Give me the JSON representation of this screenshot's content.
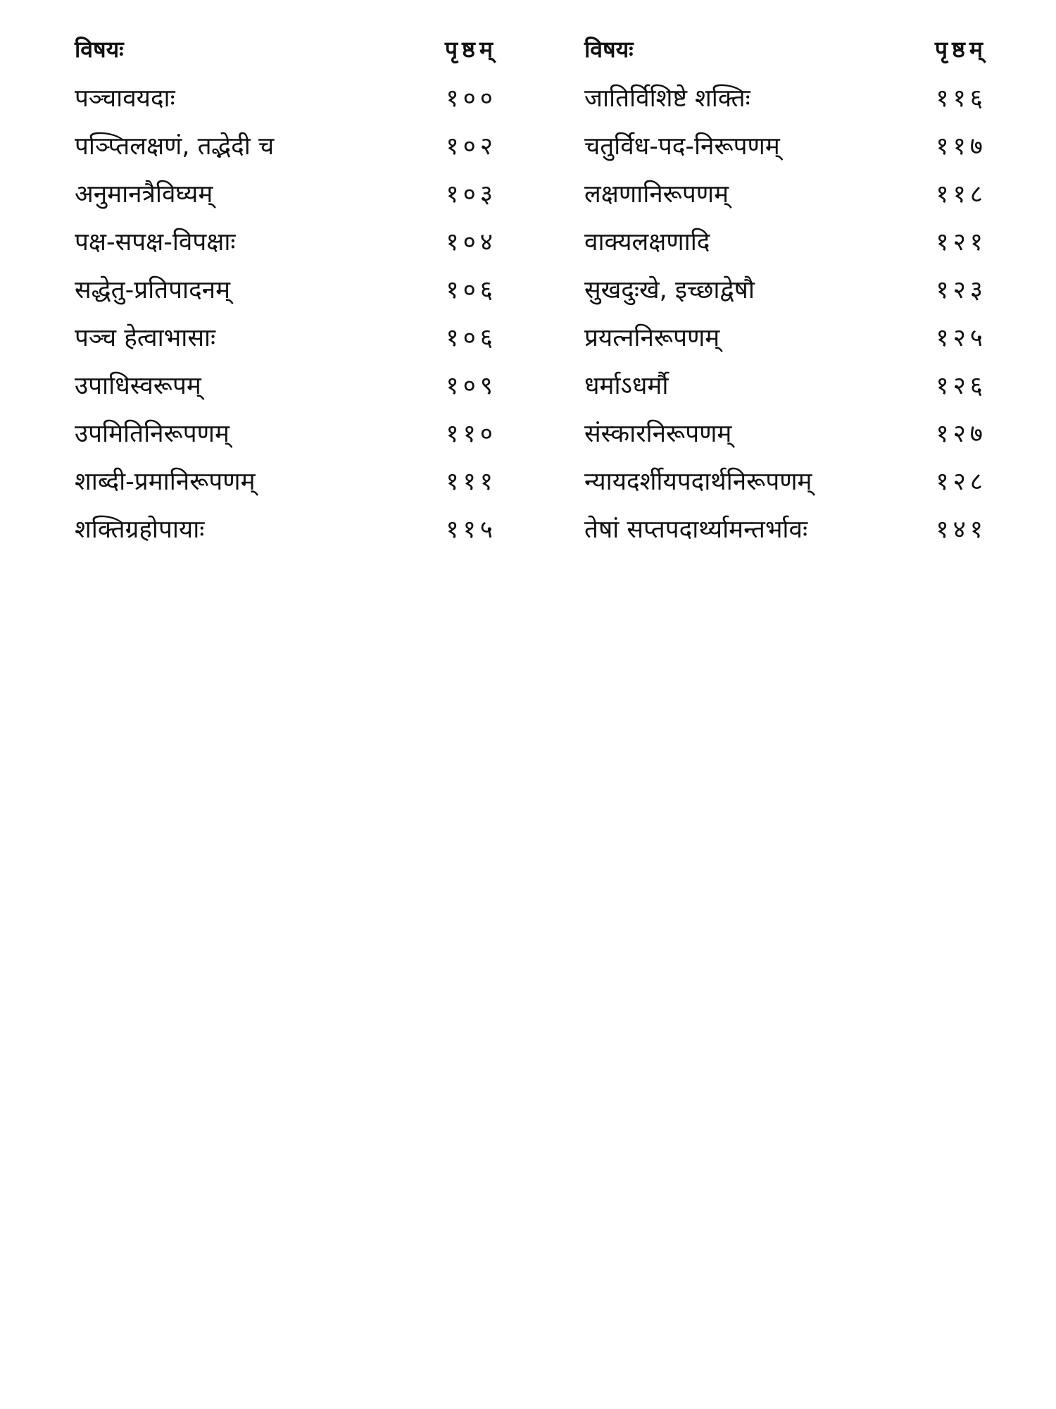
{
  "left_column": {
    "header": {
      "subject": "विषयः",
      "page": "पृष्ठम्"
    },
    "entries": [
      {
        "title": "पञ्चावयदाः",
        "page": "१००"
      },
      {
        "title": "पञ्प्तिलक्षणं, तद्भेदी च",
        "page": "१०२"
      },
      {
        "title": "अनुमानत्रैविघ्यम्",
        "page": "१०३"
      },
      {
        "title": "पक्ष-सपक्ष-विपक्षाः",
        "page": "१०४"
      },
      {
        "title": "सद्धेतु-प्रतिपादनम्",
        "page": "१०६"
      },
      {
        "title": "पञ्च हेत्वाभासाः",
        "page": "१०६"
      },
      {
        "title": "उपाधिस्वरूपम्",
        "page": "१०९"
      },
      {
        "title": "उपमितिनिरूपणम्",
        "page": "११०"
      },
      {
        "title": "शाब्दी-प्रमानिरूपणम्",
        "page": "१११"
      },
      {
        "title": "शक्तिग्रहोपायाः",
        "page": "११५"
      }
    ]
  },
  "right_column": {
    "header": {
      "subject": "विषयः",
      "page": "पृष्ठम्"
    },
    "entries": [
      {
        "title": "जातिर्विशिष्टे शक्तिः",
        "page": "११६"
      },
      {
        "title": "चतुर्विध-पद-निरूपणम्",
        "page": "११७"
      },
      {
        "title": "लक्षणानिरूपणम्",
        "page": "११८"
      },
      {
        "title": "वाक्यलक्षणादि",
        "page": "१२१"
      },
      {
        "title": "सुखदुःखे, इच्छाद्वेषौ",
        "page": "१२३"
      },
      {
        "title": "प्रयत्ननिरूपणम्",
        "page": "१२५"
      },
      {
        "title": "धर्माऽधर्मौ",
        "page": "१२६"
      },
      {
        "title": "संस्कारनिरूपणम्",
        "page": "१२७"
      },
      {
        "title": "न्यायदर्शीयपदार्थनिरूपणम्",
        "page": "१२८"
      },
      {
        "title": "तेषां सप्तपदार्थ्यामन्तर्भावः",
        "page": "१४१"
      }
    ]
  }
}
